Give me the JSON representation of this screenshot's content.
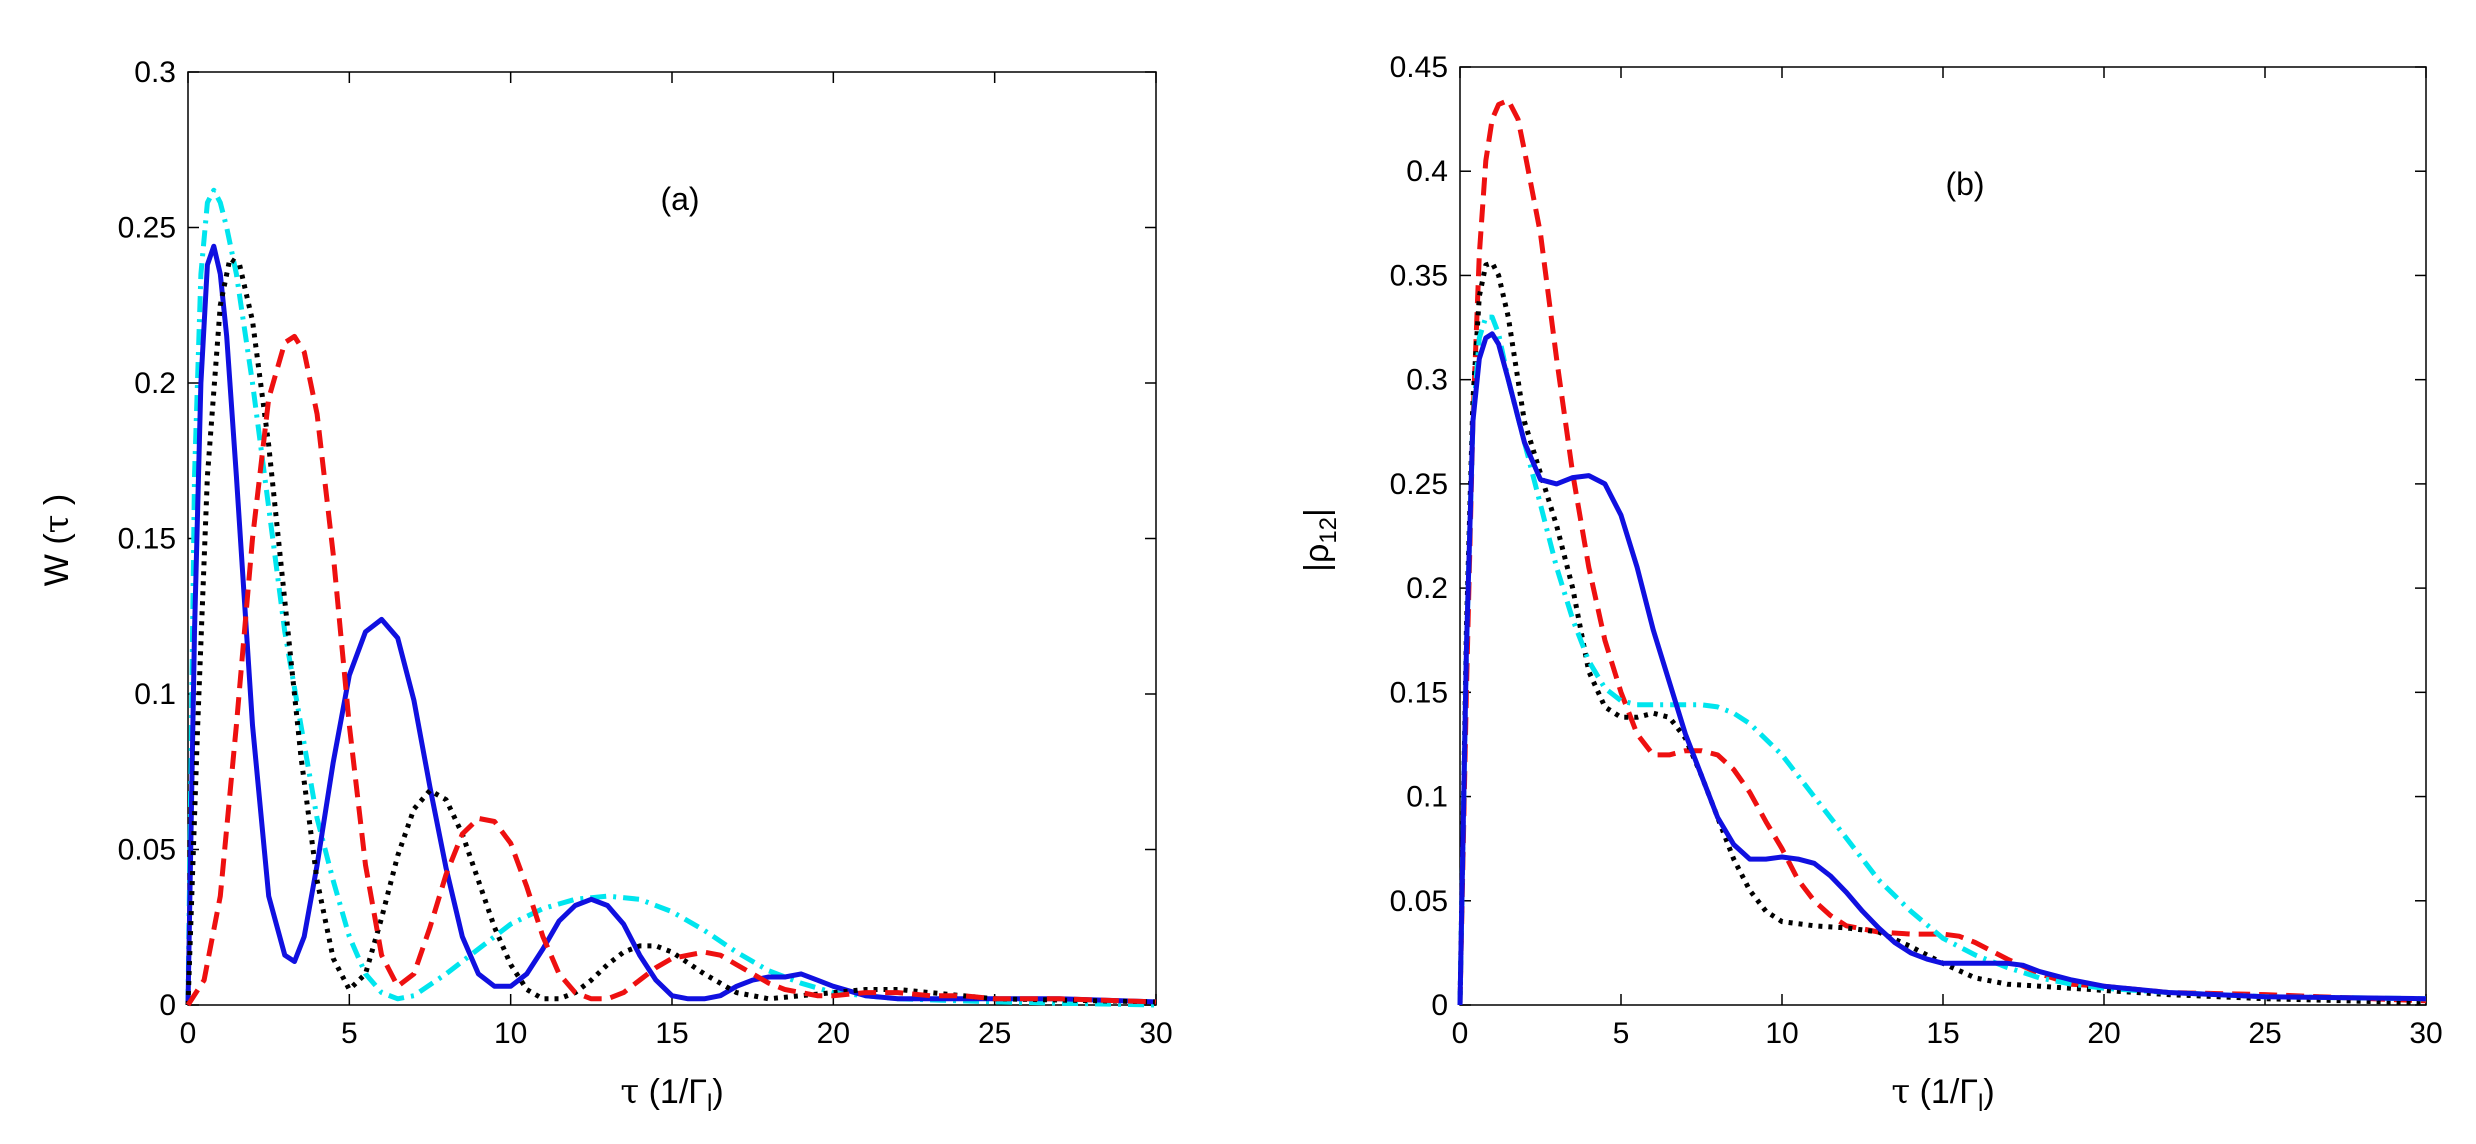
{
  "chart_data": [
    {
      "type": "line",
      "panel": "(a)",
      "ylabel_main": "W (",
      "ylabel_sym": "τ",
      "ylabel_close": " )",
      "xlabel_sym": "τ",
      "xlabel_main": " (1/Γ",
      "xlabel_sub": "l",
      "xlabel_close": ")",
      "xlim": [
        0,
        30
      ],
      "ylim": [
        0,
        0.3
      ],
      "xticks": [
        "0",
        "5",
        "10",
        "15",
        "20",
        "25",
        "30"
      ],
      "yticks": [
        "0",
        "0.05",
        "0.1",
        "0.15",
        "0.2",
        "0.25",
        "0.3"
      ],
      "series": [
        {
          "name": "cyan dash-dot",
          "color": "#00e5ee",
          "dash": "16 7 3 7",
          "x": [
            0,
            0.2,
            0.4,
            0.6,
            0.8,
            1,
            1.2,
            1.5,
            2,
            2.5,
            3,
            3.5,
            4,
            4.5,
            5,
            5.5,
            6,
            6.5,
            7,
            8,
            9,
            10,
            11,
            12,
            13,
            14,
            15,
            16,
            17,
            18,
            19,
            20,
            22,
            25,
            30
          ],
          "y": [
            0,
            0.17,
            0.235,
            0.258,
            0.262,
            0.258,
            0.25,
            0.235,
            0.2,
            0.16,
            0.12,
            0.09,
            0.06,
            0.04,
            0.022,
            0.01,
            0.004,
            0.002,
            0.003,
            0.01,
            0.018,
            0.026,
            0.031,
            0.034,
            0.035,
            0.034,
            0.03,
            0.024,
            0.017,
            0.011,
            0.007,
            0.004,
            0.002,
            0.001,
            0
          ]
        },
        {
          "name": "blue solid",
          "color": "#1010e0",
          "dash": "",
          "x": [
            0,
            0.2,
            0.4,
            0.6,
            0.8,
            1,
            1.2,
            1.5,
            2,
            2.5,
            3,
            3.3,
            3.6,
            4,
            4.5,
            5,
            5.5,
            6,
            6.5,
            7,
            7.5,
            8,
            8.5,
            9,
            9.5,
            10,
            10.5,
            11,
            11.5,
            12,
            12.5,
            13,
            13.5,
            14,
            14.5,
            15,
            15.5,
            16,
            16.5,
            17,
            17.5,
            18,
            18.5,
            19,
            19.5,
            20,
            21,
            22,
            25,
            27,
            30
          ],
          "y": [
            0,
            0.12,
            0.2,
            0.238,
            0.244,
            0.235,
            0.215,
            0.17,
            0.09,
            0.035,
            0.016,
            0.014,
            0.022,
            0.045,
            0.078,
            0.106,
            0.12,
            0.124,
            0.118,
            0.098,
            0.07,
            0.044,
            0.022,
            0.01,
            0.006,
            0.006,
            0.01,
            0.018,
            0.027,
            0.032,
            0.034,
            0.032,
            0.026,
            0.016,
            0.008,
            0.003,
            0.002,
            0.002,
            0.003,
            0.006,
            0.008,
            0.009,
            0.009,
            0.01,
            0.008,
            0.006,
            0.003,
            0.002,
            0.002,
            0.002,
            0.001
          ]
        },
        {
          "name": "black dotted",
          "color": "#000000",
          "dash": "4 6",
          "x": [
            0,
            0.3,
            0.6,
            1,
            1.3,
            1.6,
            2,
            2.5,
            3,
            3.5,
            4,
            4.5,
            5,
            5.5,
            6,
            6.5,
            7,
            7.5,
            8,
            8.5,
            9,
            9.5,
            10,
            10.5,
            11,
            11.5,
            12,
            12.5,
            13,
            13.5,
            14,
            14.5,
            15,
            16,
            17,
            18,
            19,
            20,
            21,
            22,
            23,
            24,
            25,
            30
          ],
          "y": [
            0,
            0.09,
            0.17,
            0.225,
            0.24,
            0.238,
            0.22,
            0.18,
            0.13,
            0.08,
            0.04,
            0.015,
            0.005,
            0.01,
            0.028,
            0.048,
            0.063,
            0.069,
            0.066,
            0.055,
            0.04,
            0.025,
            0.013,
            0.005,
            0.002,
            0.002,
            0.004,
            0.008,
            0.013,
            0.017,
            0.019,
            0.019,
            0.017,
            0.01,
            0.004,
            0.002,
            0.003,
            0.004,
            0.005,
            0.005,
            0.004,
            0.003,
            0.002,
            0.001
          ]
        },
        {
          "name": "red dashed",
          "color": "#ee1010",
          "dash": "18 9",
          "x": [
            0,
            0.5,
            1,
            1.5,
            2,
            2.5,
            3,
            3.3,
            3.6,
            4,
            4.5,
            5,
            5.5,
            6,
            6.5,
            7,
            7.5,
            8,
            8.5,
            9,
            9.5,
            10,
            10.5,
            11,
            11.5,
            12,
            12.5,
            13,
            13.5,
            14,
            14.5,
            15,
            15.5,
            16,
            16.5,
            17,
            17.5,
            18,
            18.5,
            19,
            19.5,
            20,
            21,
            22,
            23,
            24,
            25,
            27,
            30
          ],
          "y": [
            0,
            0.008,
            0.035,
            0.09,
            0.15,
            0.195,
            0.213,
            0.215,
            0.21,
            0.19,
            0.145,
            0.09,
            0.045,
            0.016,
            0.006,
            0.01,
            0.025,
            0.042,
            0.055,
            0.06,
            0.059,
            0.052,
            0.038,
            0.022,
            0.01,
            0.004,
            0.002,
            0.002,
            0.004,
            0.008,
            0.012,
            0.015,
            0.016,
            0.017,
            0.016,
            0.013,
            0.01,
            0.007,
            0.005,
            0.004,
            0.003,
            0.003,
            0.004,
            0.004,
            0.003,
            0.003,
            0.002,
            0.002,
            0.001
          ]
        }
      ]
    },
    {
      "type": "line",
      "panel": "(b)",
      "ylabel_main": "|ρ",
      "ylabel_sub": "12",
      "ylabel_close": "|",
      "xlabel_sym": "τ",
      "xlabel_main": " (1/Γ",
      "xlabel_sub": "l",
      "xlabel_close": ")",
      "xlim": [
        0,
        30
      ],
      "ylim": [
        0,
        0.45
      ],
      "xticks": [
        "0",
        "5",
        "10",
        "15",
        "20",
        "25",
        "30"
      ],
      "yticks": [
        "0",
        "0.05",
        "0.1",
        "0.15",
        "0.2",
        "0.25",
        "0.3",
        "0.35",
        "0.4",
        "0.45"
      ],
      "series": [
        {
          "name": "red dashed",
          "color": "#ee1010",
          "dash": "18 9",
          "x": [
            0,
            0.2,
            0.4,
            0.6,
            0.8,
            1,
            1.2,
            1.5,
            1.8,
            2,
            2.5,
            3,
            3.5,
            4,
            4.5,
            5,
            5.5,
            6,
            6.5,
            7,
            7.5,
            8,
            8.5,
            9,
            9.5,
            10,
            10.5,
            11,
            11.5,
            12,
            13,
            14,
            15,
            15.5,
            16,
            17,
            18,
            19,
            20,
            22,
            25,
            30
          ],
          "y": [
            0,
            0.15,
            0.28,
            0.36,
            0.405,
            0.425,
            0.432,
            0.434,
            0.425,
            0.41,
            0.37,
            0.31,
            0.255,
            0.21,
            0.175,
            0.15,
            0.13,
            0.12,
            0.12,
            0.122,
            0.122,
            0.12,
            0.113,
            0.102,
            0.088,
            0.075,
            0.06,
            0.05,
            0.043,
            0.038,
            0.035,
            0.034,
            0.034,
            0.033,
            0.03,
            0.022,
            0.015,
            0.01,
            0.009,
            0.006,
            0.005,
            0.002
          ]
        },
        {
          "name": "black dotted",
          "color": "#000000",
          "dash": "4 6",
          "x": [
            0,
            0.2,
            0.4,
            0.6,
            0.8,
            1,
            1.2,
            1.5,
            2,
            2.5,
            3,
            3.5,
            4,
            4.5,
            5,
            5.5,
            6,
            6.5,
            7,
            7.5,
            8,
            8.5,
            9,
            9.5,
            10,
            11,
            12,
            13,
            14,
            15,
            16,
            17,
            18,
            19,
            20,
            22,
            25,
            30
          ],
          "y": [
            0,
            0.18,
            0.29,
            0.34,
            0.355,
            0.356,
            0.35,
            0.33,
            0.28,
            0.255,
            0.23,
            0.2,
            0.16,
            0.143,
            0.138,
            0.138,
            0.14,
            0.138,
            0.128,
            0.11,
            0.09,
            0.07,
            0.055,
            0.045,
            0.04,
            0.038,
            0.037,
            0.035,
            0.028,
            0.02,
            0.013,
            0.01,
            0.009,
            0.008,
            0.007,
            0.005,
            0.003,
            0.001
          ]
        },
        {
          "name": "cyan dash-dot",
          "color": "#00e5ee",
          "dash": "16 7 3 7",
          "x": [
            0,
            0.2,
            0.4,
            0.6,
            0.8,
            1,
            1.2,
            1.5,
            2,
            2.5,
            3,
            3.5,
            4,
            4.5,
            5,
            5.5,
            6,
            6.5,
            7,
            7.5,
            8,
            8.5,
            9,
            10,
            11,
            12,
            13,
            14,
            15,
            16,
            17,
            18,
            19,
            20,
            22,
            25,
            30
          ],
          "y": [
            0,
            0.17,
            0.28,
            0.32,
            0.33,
            0.33,
            0.322,
            0.3,
            0.27,
            0.24,
            0.21,
            0.185,
            0.165,
            0.152,
            0.146,
            0.144,
            0.144,
            0.144,
            0.144,
            0.144,
            0.143,
            0.14,
            0.135,
            0.12,
            0.1,
            0.08,
            0.06,
            0.045,
            0.032,
            0.024,
            0.018,
            0.013,
            0.01,
            0.008,
            0.006,
            0.004,
            0.003
          ]
        },
        {
          "name": "blue solid",
          "color": "#1010e0",
          "dash": "",
          "x": [
            0,
            0.2,
            0.4,
            0.6,
            0.8,
            1,
            1.2,
            1.5,
            2,
            2.5,
            3,
            3.5,
            4,
            4.5,
            5,
            5.5,
            6,
            6.5,
            7,
            7.5,
            8,
            8.5,
            9,
            9.5,
            10,
            10.5,
            11,
            11.5,
            12,
            12.5,
            13,
            13.5,
            14,
            14.5,
            15,
            16,
            17,
            17.5,
            18,
            19,
            20,
            22,
            25,
            30
          ],
          "y": [
            0,
            0.17,
            0.28,
            0.31,
            0.32,
            0.322,
            0.317,
            0.3,
            0.27,
            0.252,
            0.25,
            0.253,
            0.254,
            0.25,
            0.235,
            0.21,
            0.18,
            0.155,
            0.13,
            0.11,
            0.09,
            0.077,
            0.07,
            0.07,
            0.071,
            0.07,
            0.068,
            0.062,
            0.054,
            0.045,
            0.037,
            0.03,
            0.025,
            0.022,
            0.02,
            0.02,
            0.02,
            0.019,
            0.016,
            0.012,
            0.009,
            0.006,
            0.004,
            0.003
          ]
        }
      ]
    }
  ]
}
